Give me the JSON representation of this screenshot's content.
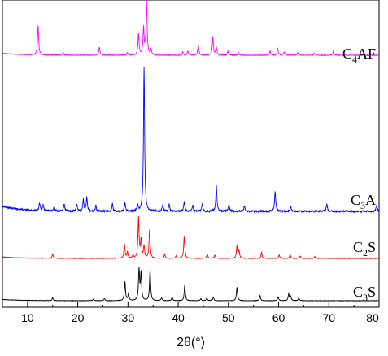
{
  "chart_data": {
    "type": "line",
    "title": "",
    "xlabel": "2θ(°)",
    "ylabel": "",
    "xlim": [
      5,
      80
    ],
    "xticks": [
      "10",
      "20",
      "30",
      "40",
      "50",
      "60",
      "70",
      "80"
    ],
    "yticks_visible": false,
    "legend": "none",
    "grid": false,
    "series": [
      {
        "name": "C4AF",
        "label_base": "C",
        "label_sub": "4",
        "label_rest": "AF",
        "color": "#ff00ff",
        "peaks": [
          [
            12.1,
            0.55
          ],
          [
            17.1,
            0.05
          ],
          [
            24.3,
            0.15
          ],
          [
            29.9,
            0.05
          ],
          [
            32.1,
            0.4
          ],
          [
            33.1,
            0.5
          ],
          [
            33.7,
            1.0
          ],
          [
            34.6,
            0.1
          ],
          [
            40.9,
            0.06
          ],
          [
            41.9,
            0.08
          ],
          [
            44.0,
            0.2
          ],
          [
            46.9,
            0.35
          ],
          [
            47.6,
            0.15
          ],
          [
            49.9,
            0.08
          ],
          [
            52.0,
            0.05
          ],
          [
            58.3,
            0.08
          ],
          [
            59.8,
            0.12
          ],
          [
            61.1,
            0.06
          ],
          [
            63.8,
            0.05
          ],
          [
            67.1,
            0.04
          ],
          [
            70.9,
            0.08
          ]
        ]
      },
      {
        "name": "C3A",
        "label_base": "C",
        "label_sub": "3",
        "label_rest": "A",
        "color": "#0000ff",
        "peaks": [
          [
            12.4,
            0.05
          ],
          [
            13.1,
            0.04
          ],
          [
            15.3,
            0.03
          ],
          [
            17.3,
            0.05
          ],
          [
            19.8,
            0.05
          ],
          [
            21.1,
            0.08
          ],
          [
            21.8,
            0.1
          ],
          [
            23.6,
            0.04
          ],
          [
            26.9,
            0.05
          ],
          [
            29.4,
            0.06
          ],
          [
            31.9,
            0.04
          ],
          [
            33.2,
            1.0
          ],
          [
            36.9,
            0.04
          ],
          [
            38.2,
            0.05
          ],
          [
            41.2,
            0.07
          ],
          [
            42.9,
            0.04
          ],
          [
            44.8,
            0.05
          ],
          [
            47.6,
            0.18
          ],
          [
            50.1,
            0.05
          ],
          [
            53.2,
            0.04
          ],
          [
            59.3,
            0.14
          ],
          [
            62.4,
            0.03
          ],
          [
            69.6,
            0.05
          ],
          [
            79.5,
            0.04
          ]
        ]
      },
      {
        "name": "C2S",
        "label_base": "C",
        "label_sub": "2",
        "label_rest": "S",
        "color": "#ff0000",
        "peaks": [
          [
            15.0,
            0.1
          ],
          [
            29.3,
            0.35
          ],
          [
            29.9,
            0.15
          ],
          [
            31.0,
            0.08
          ],
          [
            32.1,
            1.0
          ],
          [
            32.6,
            0.45
          ],
          [
            33.2,
            0.3
          ],
          [
            34.3,
            0.7
          ],
          [
            37.3,
            0.1
          ],
          [
            39.6,
            0.06
          ],
          [
            41.2,
            0.55
          ],
          [
            45.8,
            0.1
          ],
          [
            47.3,
            0.08
          ],
          [
            51.7,
            0.3
          ],
          [
            52.1,
            0.2
          ],
          [
            56.6,
            0.15
          ],
          [
            60.1,
            0.08
          ],
          [
            62.3,
            0.1
          ],
          [
            64.3,
            0.06
          ],
          [
            67.2,
            0.05
          ]
        ]
      },
      {
        "name": "C3S",
        "label_base": "C",
        "label_sub": "3",
        "label_rest": "S",
        "color": "#000000",
        "peaks": [
          [
            15.0,
            0.08
          ],
          [
            23.1,
            0.05
          ],
          [
            25.3,
            0.06
          ],
          [
            29.4,
            0.55
          ],
          [
            30.1,
            0.2
          ],
          [
            32.2,
            0.9
          ],
          [
            32.6,
            0.8
          ],
          [
            34.4,
            0.9
          ],
          [
            36.7,
            0.08
          ],
          [
            38.8,
            0.1
          ],
          [
            41.3,
            0.45
          ],
          [
            44.5,
            0.06
          ],
          [
            45.7,
            0.08
          ],
          [
            47.0,
            0.1
          ],
          [
            51.7,
            0.4
          ],
          [
            56.3,
            0.15
          ],
          [
            59.9,
            0.12
          ],
          [
            62.0,
            0.2
          ],
          [
            62.4,
            0.12
          ],
          [
            64.0,
            0.08
          ]
        ]
      }
    ]
  }
}
